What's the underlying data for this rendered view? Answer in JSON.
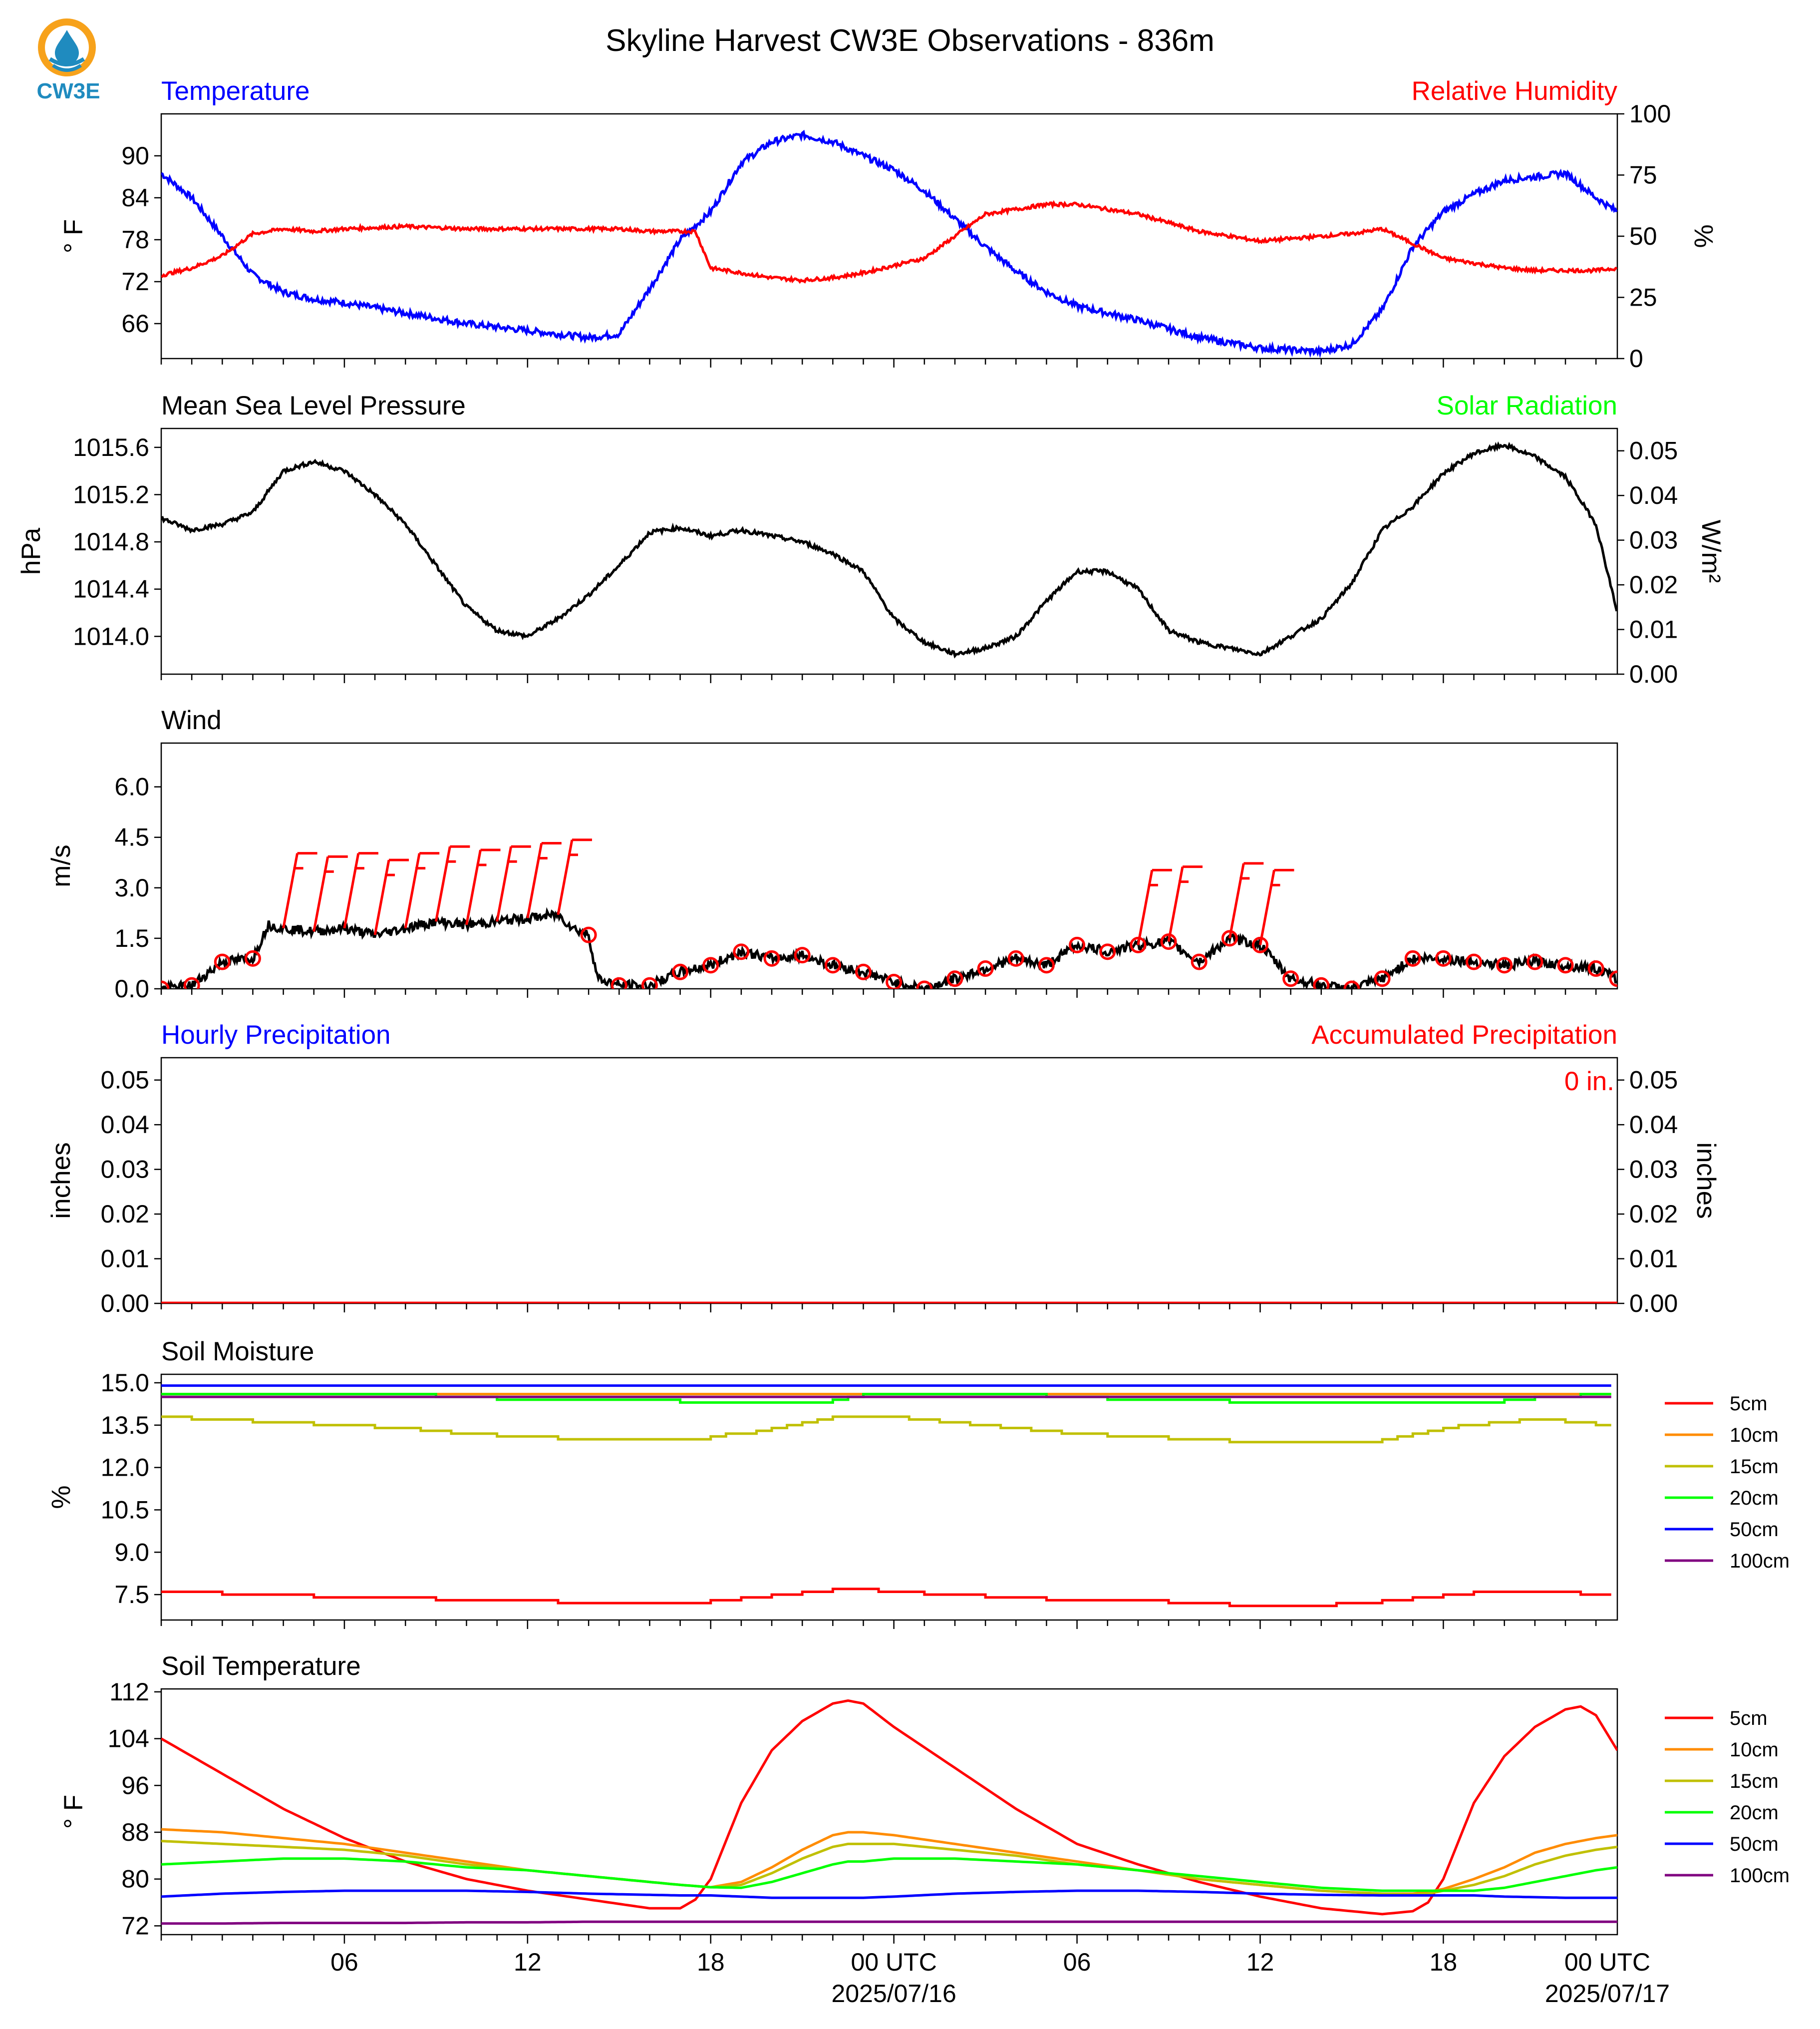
{
  "title": "Skyline Harvest CW3E Observations - 836m",
  "logo": {
    "text": "CW3E",
    "colors": {
      "ring": "#f7a21b",
      "drop": "#1f8bbf",
      "text": "#1f8bbf"
    }
  },
  "time_axis": {
    "tick_labels": [
      "06",
      "12",
      "18",
      "00 UTC",
      "06",
      "12",
      "18",
      "00 UTC"
    ],
    "date_labels": [
      "2025/07/16",
      "2025/07/17"
    ]
  },
  "chart_data": [
    {
      "type": "line",
      "id": "temperature_rh",
      "left_title": "Temperature",
      "right_title": "Relative Humidity",
      "left_title_color": "#0000ff",
      "right_title_color": "#ff0000",
      "ylabel": "° F",
      "ylabel_right": "%",
      "yticks": [
        "66",
        "72",
        "78",
        "84",
        "90"
      ],
      "yticks_right": [
        "0",
        "25",
        "50",
        "75",
        "100"
      ],
      "ylim": [
        61,
        96
      ],
      "ylim_right": [
        0,
        100
      ],
      "x_hours": [
        0,
        1,
        2,
        3,
        4,
        5,
        6,
        8,
        10,
        12,
        14,
        15,
        16,
        17,
        17.5,
        18,
        19,
        20,
        21,
        22,
        23,
        24,
        25,
        26,
        27,
        28,
        29,
        30,
        32,
        34,
        36,
        38,
        39,
        40,
        41,
        42,
        43,
        44,
        45,
        46,
        47,
        47.7
      ],
      "series": [
        {
          "name": "Temperature",
          "color": "#0000ff",
          "values": [
            87.5,
            84,
            78.5,
            73,
            70.5,
            69.5,
            69,
            67.5,
            66,
            65,
            64,
            64.5,
            71,
            78,
            80,
            82,
            89,
            92,
            93,
            92,
            90,
            88,
            85,
            81,
            77,
            73.5,
            70.5,
            68.5,
            66.5,
            64,
            62.5,
            62,
            63,
            68,
            77,
            82,
            84.5,
            86.5,
            87,
            87.5,
            84,
            82
          ]
        },
        {
          "name": "Relative Humidity",
          "color": "#ff0000",
          "values": [
            34,
            37,
            42,
            51,
            53,
            52,
            53,
            54,
            53,
            53,
            53,
            53,
            52,
            52,
            52,
            37,
            35,
            33,
            32,
            33,
            35,
            38,
            41,
            50,
            59,
            61,
            63,
            63,
            59,
            52,
            48,
            50,
            51,
            53,
            47,
            41,
            39,
            37,
            36,
            36,
            36,
            37
          ]
        }
      ]
    },
    {
      "type": "line",
      "id": "pressure_solar",
      "left_title": "Mean Sea Level Pressure",
      "right_title": "Solar Radiation",
      "left_title_color": "#000000",
      "right_title_color": "#00ff00",
      "ylabel": "hPa",
      "ylabel_right": "W/m²",
      "yticks": [
        "1014.0",
        "1014.4",
        "1014.8",
        "1015.2",
        "1015.6"
      ],
      "yticks_right": [
        "0.00",
        "0.01",
        "0.02",
        "0.03",
        "0.04",
        "0.05"
      ],
      "ylim": [
        1013.68,
        1015.76
      ],
      "ylim_right": [
        0,
        0.055
      ],
      "x_hours": [
        0,
        1,
        2,
        3,
        4,
        5,
        6,
        7,
        8,
        9,
        10,
        11,
        12,
        13,
        14,
        15,
        16,
        17,
        18,
        19,
        20,
        21,
        22,
        23,
        24,
        25,
        26,
        27,
        28,
        29,
        30,
        31,
        32,
        33,
        34,
        35,
        36,
        37,
        38,
        39,
        40,
        41,
        42,
        43,
        44,
        45,
        46,
        47,
        47.7
      ],
      "series": [
        {
          "name": "Mean Sea Level Pressure",
          "color": "#000000",
          "values": [
            1015.0,
            1014.9,
            1014.95,
            1015.05,
            1015.4,
            1015.48,
            1015.4,
            1015.2,
            1014.95,
            1014.6,
            1014.25,
            1014.05,
            1014.0,
            1014.15,
            1014.35,
            1014.6,
            1014.88,
            1014.92,
            1014.85,
            1014.9,
            1014.85,
            1014.8,
            1014.7,
            1014.55,
            1014.15,
            1013.95,
            1013.85,
            1013.9,
            1014.0,
            1014.3,
            1014.55,
            1014.55,
            1014.4,
            1014.05,
            1013.95,
            1013.9,
            1013.85,
            1014.0,
            1014.15,
            1014.45,
            1014.9,
            1015.1,
            1015.38,
            1015.55,
            1015.62,
            1015.52,
            1015.35,
            1014.95,
            1014.2
          ]
        }
      ]
    },
    {
      "type": "line",
      "id": "wind",
      "left_title": "Wind",
      "left_title_color": "#000000",
      "ylabel": "m/s",
      "yticks": [
        "0.0",
        "1.5",
        "3.0",
        "4.5",
        "6.0"
      ],
      "ylim": [
        0,
        7.3
      ],
      "barb_color": "#ff0000",
      "x_hours": [
        0,
        1,
        2,
        3,
        3.5,
        4,
        5,
        6,
        7,
        8,
        9,
        10,
        11,
        12,
        13,
        13.5,
        14,
        14.3,
        15,
        16,
        17,
        18,
        19,
        20,
        21,
        22,
        23,
        24,
        25,
        26,
        27,
        28,
        29,
        30,
        31,
        32,
        33,
        34,
        35,
        36,
        37,
        38,
        39,
        40,
        41,
        42,
        43,
        44,
        45,
        46,
        47,
        47.7
      ],
      "series": [
        {
          "name": "Wind speed",
          "color": "#000000",
          "values": [
            0.0,
            0.1,
            0.8,
            0.9,
            1.9,
            1.8,
            1.7,
            1.8,
            1.6,
            1.8,
            2.0,
            1.9,
            2.0,
            2.1,
            2.2,
            1.8,
            1.6,
            0.3,
            0.1,
            0.1,
            0.5,
            0.7,
            1.1,
            0.9,
            1.0,
            0.7,
            0.5,
            0.2,
            0.0,
            0.3,
            0.6,
            0.9,
            0.7,
            1.3,
            1.1,
            1.3,
            1.4,
            0.8,
            1.5,
            1.3,
            0.3,
            0.1,
            0.0,
            0.3,
            0.9,
            0.9,
            0.8,
            0.7,
            0.8,
            0.7,
            0.6,
            0.3
          ]
        }
      ],
      "calm_markers_hours": [
        0,
        1,
        2,
        3,
        14,
        15,
        16,
        17,
        18,
        19,
        20,
        21,
        22,
        23,
        24,
        25,
        26,
        27,
        28,
        29,
        30,
        31,
        32,
        33,
        34,
        35,
        36,
        37,
        38,
        39,
        40,
        41,
        42,
        43,
        44,
        45,
        46,
        47,
        47.7
      ],
      "barb_hours": [
        4,
        5,
        6,
        7,
        8,
        9,
        10,
        11,
        12,
        13,
        32,
        33,
        35,
        36
      ]
    },
    {
      "type": "line",
      "id": "precipitation",
      "left_title": "Hourly Precipitation",
      "right_title": "Accumulated Precipitation",
      "left_title_color": "#0000ff",
      "right_title_color": "#ff0000",
      "ylabel": "inches",
      "ylabel_right": "inches",
      "yticks": [
        "0.00",
        "0.01",
        "0.02",
        "0.03",
        "0.04",
        "0.05"
      ],
      "yticks_right": [
        "0.00",
        "0.01",
        "0.02",
        "0.03",
        "0.04",
        "0.05"
      ],
      "ylim": [
        0,
        0.055
      ],
      "accum_label": "0 in.",
      "series": [
        {
          "name": "Hourly Precipitation",
          "color": "#0000ff",
          "values": [
            0,
            0
          ]
        },
        {
          "name": "Accumulated Precipitation",
          "color": "#ff0000",
          "values": [
            0,
            0
          ]
        }
      ],
      "x_hours": [
        0,
        47.7
      ]
    },
    {
      "type": "line",
      "id": "soil_moisture",
      "left_title": "Soil Moisture",
      "left_title_color": "#000000",
      "ylabel": "%",
      "yticks": [
        "7.5",
        "9.0",
        "10.5",
        "12.0",
        "13.5",
        "15.0"
      ],
      "ylim": [
        6.6,
        15.3
      ],
      "x_hours": [
        0,
        4,
        6,
        8,
        10,
        12,
        14,
        16,
        18,
        20,
        22,
        23,
        24,
        26,
        28,
        30,
        32,
        34,
        36,
        38,
        40,
        42,
        44,
        46,
        47.7
      ],
      "series": [
        {
          "name": "5cm",
          "color": "#ff0000",
          "values": [
            7.6,
            7.5,
            7.4,
            7.4,
            7.3,
            7.3,
            7.2,
            7.2,
            7.2,
            7.4,
            7.6,
            7.7,
            7.6,
            7.5,
            7.4,
            7.3,
            7.3,
            7.2,
            7.1,
            7.1,
            7.2,
            7.4,
            7.6,
            7.6,
            7.5
          ]
        },
        {
          "name": "10cm",
          "color": "#ff8c00",
          "values": [
            14.6,
            14.6,
            14.6,
            14.6,
            14.6,
            14.6,
            14.6,
            14.6,
            14.6,
            14.6,
            14.6,
            14.6,
            14.6,
            14.6,
            14.6,
            14.6,
            14.6,
            14.6,
            14.6,
            14.6,
            14.6,
            14.6,
            14.6,
            14.6,
            14.6
          ]
        },
        {
          "name": "15cm",
          "color": "#c0c000",
          "values": [
            13.8,
            13.6,
            13.5,
            13.4,
            13.2,
            13.1,
            13.0,
            13.0,
            13.0,
            13.3,
            13.7,
            13.8,
            13.8,
            13.6,
            13.4,
            13.2,
            13.1,
            13.0,
            12.9,
            12.9,
            12.9,
            13.3,
            13.6,
            13.7,
            13.5
          ]
        },
        {
          "name": "20cm",
          "color": "#00ff00",
          "values": [
            14.6,
            14.6,
            14.6,
            14.6,
            14.5,
            14.4,
            14.4,
            14.4,
            14.3,
            14.3,
            14.3,
            14.5,
            14.6,
            14.6,
            14.6,
            14.5,
            14.4,
            14.4,
            14.3,
            14.3,
            14.3,
            14.3,
            14.3,
            14.5,
            14.6
          ]
        },
        {
          "name": "50cm",
          "color": "#0000ff",
          "values": [
            14.9,
            14.9,
            14.9,
            14.9,
            14.9,
            14.9,
            14.9,
            14.9,
            14.9,
            14.9,
            14.9,
            14.9,
            14.9,
            14.9,
            14.9,
            14.9,
            14.9,
            14.9,
            14.9,
            14.9,
            14.9,
            14.9,
            14.9,
            14.9,
            14.9
          ]
        },
        {
          "name": "100cm",
          "color": "#800080",
          "values": [
            14.5,
            14.5,
            14.5,
            14.5,
            14.5,
            14.5,
            14.5,
            14.5,
            14.5,
            14.5,
            14.5,
            14.5,
            14.5,
            14.5,
            14.5,
            14.5,
            14.5,
            14.5,
            14.5,
            14.5,
            14.5,
            14.5,
            14.5,
            14.5,
            14.5
          ]
        }
      ],
      "legend": [
        "5cm",
        "10cm",
        "15cm",
        "20cm",
        "50cm",
        "100cm"
      ]
    },
    {
      "type": "line",
      "id": "soil_temperature",
      "left_title": "Soil Temperature",
      "left_title_color": "#000000",
      "ylabel": "° F",
      "yticks": [
        "72",
        "80",
        "88",
        "96",
        "104",
        "112"
      ],
      "ylim": [
        70.5,
        112.5
      ],
      "x_hours": [
        0,
        2,
        4,
        6,
        8,
        10,
        12,
        14,
        16,
        17,
        17.5,
        18,
        19,
        20,
        21,
        22,
        22.5,
        23,
        24,
        26,
        28,
        30,
        32,
        34,
        36,
        38,
        40,
        41,
        41.5,
        42,
        43,
        44,
        45,
        46,
        46.5,
        47,
        47.7
      ],
      "series": [
        {
          "name": "5cm",
          "color": "#ff0000",
          "values": [
            104,
            98,
            92,
            87,
            83,
            80,
            78,
            76.5,
            75,
            75,
            76.5,
            80,
            93,
            102,
            107,
            110,
            110.5,
            110,
            106,
            99,
            92,
            86,
            82.5,
            79.5,
            77,
            75,
            74,
            74.5,
            76,
            80,
            93,
            101,
            106,
            109,
            109.5,
            108,
            102
          ]
        },
        {
          "name": "10cm",
          "color": "#ff8c00",
          "values": [
            88.5,
            88,
            87,
            86,
            84.5,
            83,
            81.5,
            80.5,
            79.5,
            79,
            78.8,
            78.6,
            79.5,
            82,
            85,
            87.5,
            88,
            88,
            87.5,
            86,
            84.5,
            83,
            81.5,
            80,
            79,
            78,
            77.5,
            77.5,
            77.8,
            78.3,
            80,
            82,
            84.5,
            86,
            86.5,
            87,
            87.5
          ]
        },
        {
          "name": "15cm",
          "color": "#c0c000",
          "values": [
            86.5,
            86,
            85.5,
            85,
            84,
            82.5,
            81.5,
            80.5,
            79.5,
            79,
            78.8,
            78.6,
            79,
            81,
            83.5,
            85.5,
            86,
            86,
            86,
            85,
            84,
            82.5,
            81.5,
            80,
            79,
            78,
            77.5,
            77.3,
            77.5,
            78,
            79,
            80.5,
            82.5,
            84,
            84.5,
            85,
            85.5
          ]
        },
        {
          "name": "20cm",
          "color": "#00ff00",
          "values": [
            82.5,
            83,
            83.5,
            83.5,
            83,
            82,
            81.5,
            80.5,
            79.5,
            79,
            78.8,
            78.6,
            78.5,
            79.5,
            81,
            82.5,
            83,
            83,
            83.5,
            83.5,
            83,
            82.5,
            81.5,
            80.5,
            79.5,
            78.5,
            78,
            78,
            78,
            78,
            78,
            78.5,
            79.5,
            80.5,
            81,
            81.5,
            82
          ]
        },
        {
          "name": "50cm",
          "color": "#0000ff",
          "values": [
            77,
            77.5,
            77.8,
            78,
            78,
            78,
            77.8,
            77.5,
            77.3,
            77.2,
            77.2,
            77.2,
            77,
            76.8,
            76.8,
            76.8,
            76.8,
            76.8,
            77,
            77.5,
            77.8,
            78,
            78,
            77.8,
            77.5,
            77.3,
            77.2,
            77.2,
            77.2,
            77.2,
            77.2,
            77,
            76.9,
            76.8,
            76.8,
            76.8,
            76.8
          ]
        },
        {
          "name": "100cm",
          "color": "#800080",
          "values": [
            72.4,
            72.4,
            72.5,
            72.5,
            72.5,
            72.6,
            72.6,
            72.7,
            72.7,
            72.7,
            72.7,
            72.7,
            72.7,
            72.7,
            72.7,
            72.7,
            72.7,
            72.7,
            72.7,
            72.7,
            72.7,
            72.7,
            72.7,
            72.7,
            72.7,
            72.7,
            72.7,
            72.7,
            72.7,
            72.7,
            72.7,
            72.7,
            72.7,
            72.7,
            72.7,
            72.7,
            72.7
          ]
        }
      ],
      "legend": [
        "5cm",
        "10cm",
        "15cm",
        "20cm",
        "50cm",
        "100cm"
      ]
    }
  ]
}
